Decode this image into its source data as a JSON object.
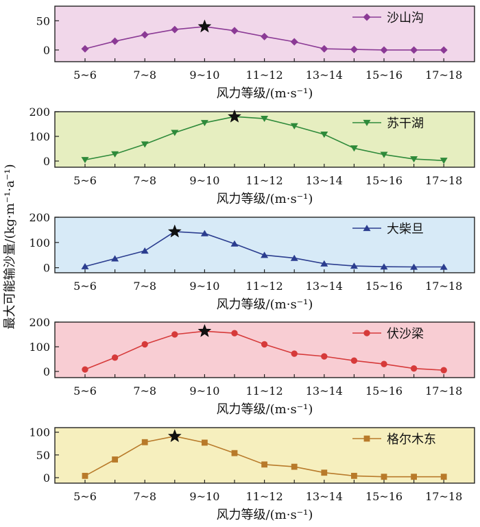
{
  "figure": {
    "shared_ylabel": "最大可能输沙量/(kg·m⁻¹·a⁻¹)"
  },
  "chart_data": [
    {
      "type": "line",
      "categories": [
        "5~6",
        "6~7",
        "7~8",
        "8~9",
        "9~10",
        "10~11",
        "11~12",
        "12~13",
        "13~14",
        "14~15",
        "15~16",
        "16~17",
        "17~18"
      ],
      "tick_labels": [
        "5~6",
        "7~8",
        "9~10",
        "11~12",
        "13~14",
        "15~16",
        "17~18"
      ],
      "xlabel": "风力等级/(m·s⁻¹)",
      "ylim": [
        -20,
        75
      ],
      "yticks": [
        0,
        50
      ],
      "background": "#f1d7ea",
      "color": "#8b3a95",
      "marker": "diamond",
      "series": [
        {
          "name": "沙山沟",
          "values": [
            2,
            15,
            26,
            35,
            40,
            33,
            23,
            14,
            2,
            1,
            0,
            0,
            0
          ]
        }
      ],
      "peak_index": 4,
      "legend_position": "top-right"
    },
    {
      "type": "line",
      "categories": [
        "5~6",
        "6~7",
        "7~8",
        "8~9",
        "9~10",
        "10~11",
        "11~12",
        "12~13",
        "13~14",
        "14~15",
        "15~16",
        "16~17",
        "17~18"
      ],
      "tick_labels": [
        "5~6",
        "7~8",
        "9~10",
        "11~12",
        "13~14",
        "15~16",
        "17~18"
      ],
      "xlabel": "风力等级/(m·s⁻¹)",
      "ylim": [
        -25,
        200
      ],
      "yticks": [
        0,
        100,
        200
      ],
      "background": "#e6eec0",
      "color": "#2e8a3a",
      "marker": "triangle-down",
      "series": [
        {
          "name": "苏干湖",
          "values": [
            5,
            28,
            68,
            115,
            155,
            180,
            172,
            142,
            108,
            52,
            26,
            8,
            2
          ]
        }
      ],
      "peak_index": 5,
      "legend_position": "top-right"
    },
    {
      "type": "line",
      "categories": [
        "5~6",
        "6~7",
        "7~8",
        "8~9",
        "9~10",
        "10~11",
        "11~12",
        "12~13",
        "13~14",
        "14~15",
        "15~16",
        "16~17",
        "17~18"
      ],
      "tick_labels": [
        "5~6",
        "7~8",
        "9~10",
        "11~12",
        "13~14",
        "15~16",
        "17~18"
      ],
      "xlabel": "风力等级/(m·s⁻¹)",
      "ylim": [
        -20,
        200
      ],
      "yticks": [
        0,
        100,
        200
      ],
      "background": "#d7eaf7",
      "color": "#2b3d8f",
      "marker": "triangle-up",
      "series": [
        {
          "name": "大柴旦",
          "values": [
            5,
            36,
            67,
            143,
            136,
            95,
            50,
            38,
            16,
            7,
            4,
            3,
            3
          ]
        }
      ],
      "peak_index": 3,
      "legend_position": "top-right"
    },
    {
      "type": "line",
      "categories": [
        "5~6",
        "6~7",
        "7~8",
        "8~9",
        "9~10",
        "10~11",
        "11~12",
        "12~13",
        "13~14",
        "14~15",
        "15~16",
        "16~17",
        "17~18"
      ],
      "tick_labels": [
        "5~6",
        "7~8",
        "9~10",
        "11~12",
        "13~14",
        "15~16",
        "17~18"
      ],
      "xlabel": "风力等级/(m·s⁻¹)",
      "ylim": [
        -25,
        200
      ],
      "yticks": [
        0,
        100,
        200
      ],
      "background": "#f8cdd3",
      "color": "#d63a3a",
      "marker": "circle",
      "series": [
        {
          "name": "伏沙梁",
          "values": [
            8,
            56,
            110,
            150,
            163,
            155,
            110,
            72,
            61,
            44,
            30,
            12,
            5
          ]
        }
      ],
      "peak_index": 4,
      "legend_position": "top-right"
    },
    {
      "type": "line",
      "categories": [
        "5~6",
        "6~7",
        "7~8",
        "8~9",
        "9~10",
        "10~11",
        "11~12",
        "12~13",
        "13~14",
        "14~15",
        "15~16",
        "16~17",
        "17~18"
      ],
      "tick_labels": [
        "5~6",
        "7~8",
        "9~10",
        "11~12",
        "13~14",
        "15~16",
        "17~18"
      ],
      "xlabel": "风力等级/(m·s⁻¹)",
      "ylim": [
        -12,
        110
      ],
      "yticks": [
        0,
        50,
        100
      ],
      "background": "#f6efbe",
      "color": "#b87a2a",
      "marker": "square",
      "series": [
        {
          "name": "格尔木东",
          "values": [
            4,
            40,
            78,
            91,
            77,
            54,
            29,
            24,
            11,
            4,
            2,
            2,
            2
          ]
        }
      ],
      "peak_index": 3,
      "legend_position": "top-right"
    }
  ]
}
